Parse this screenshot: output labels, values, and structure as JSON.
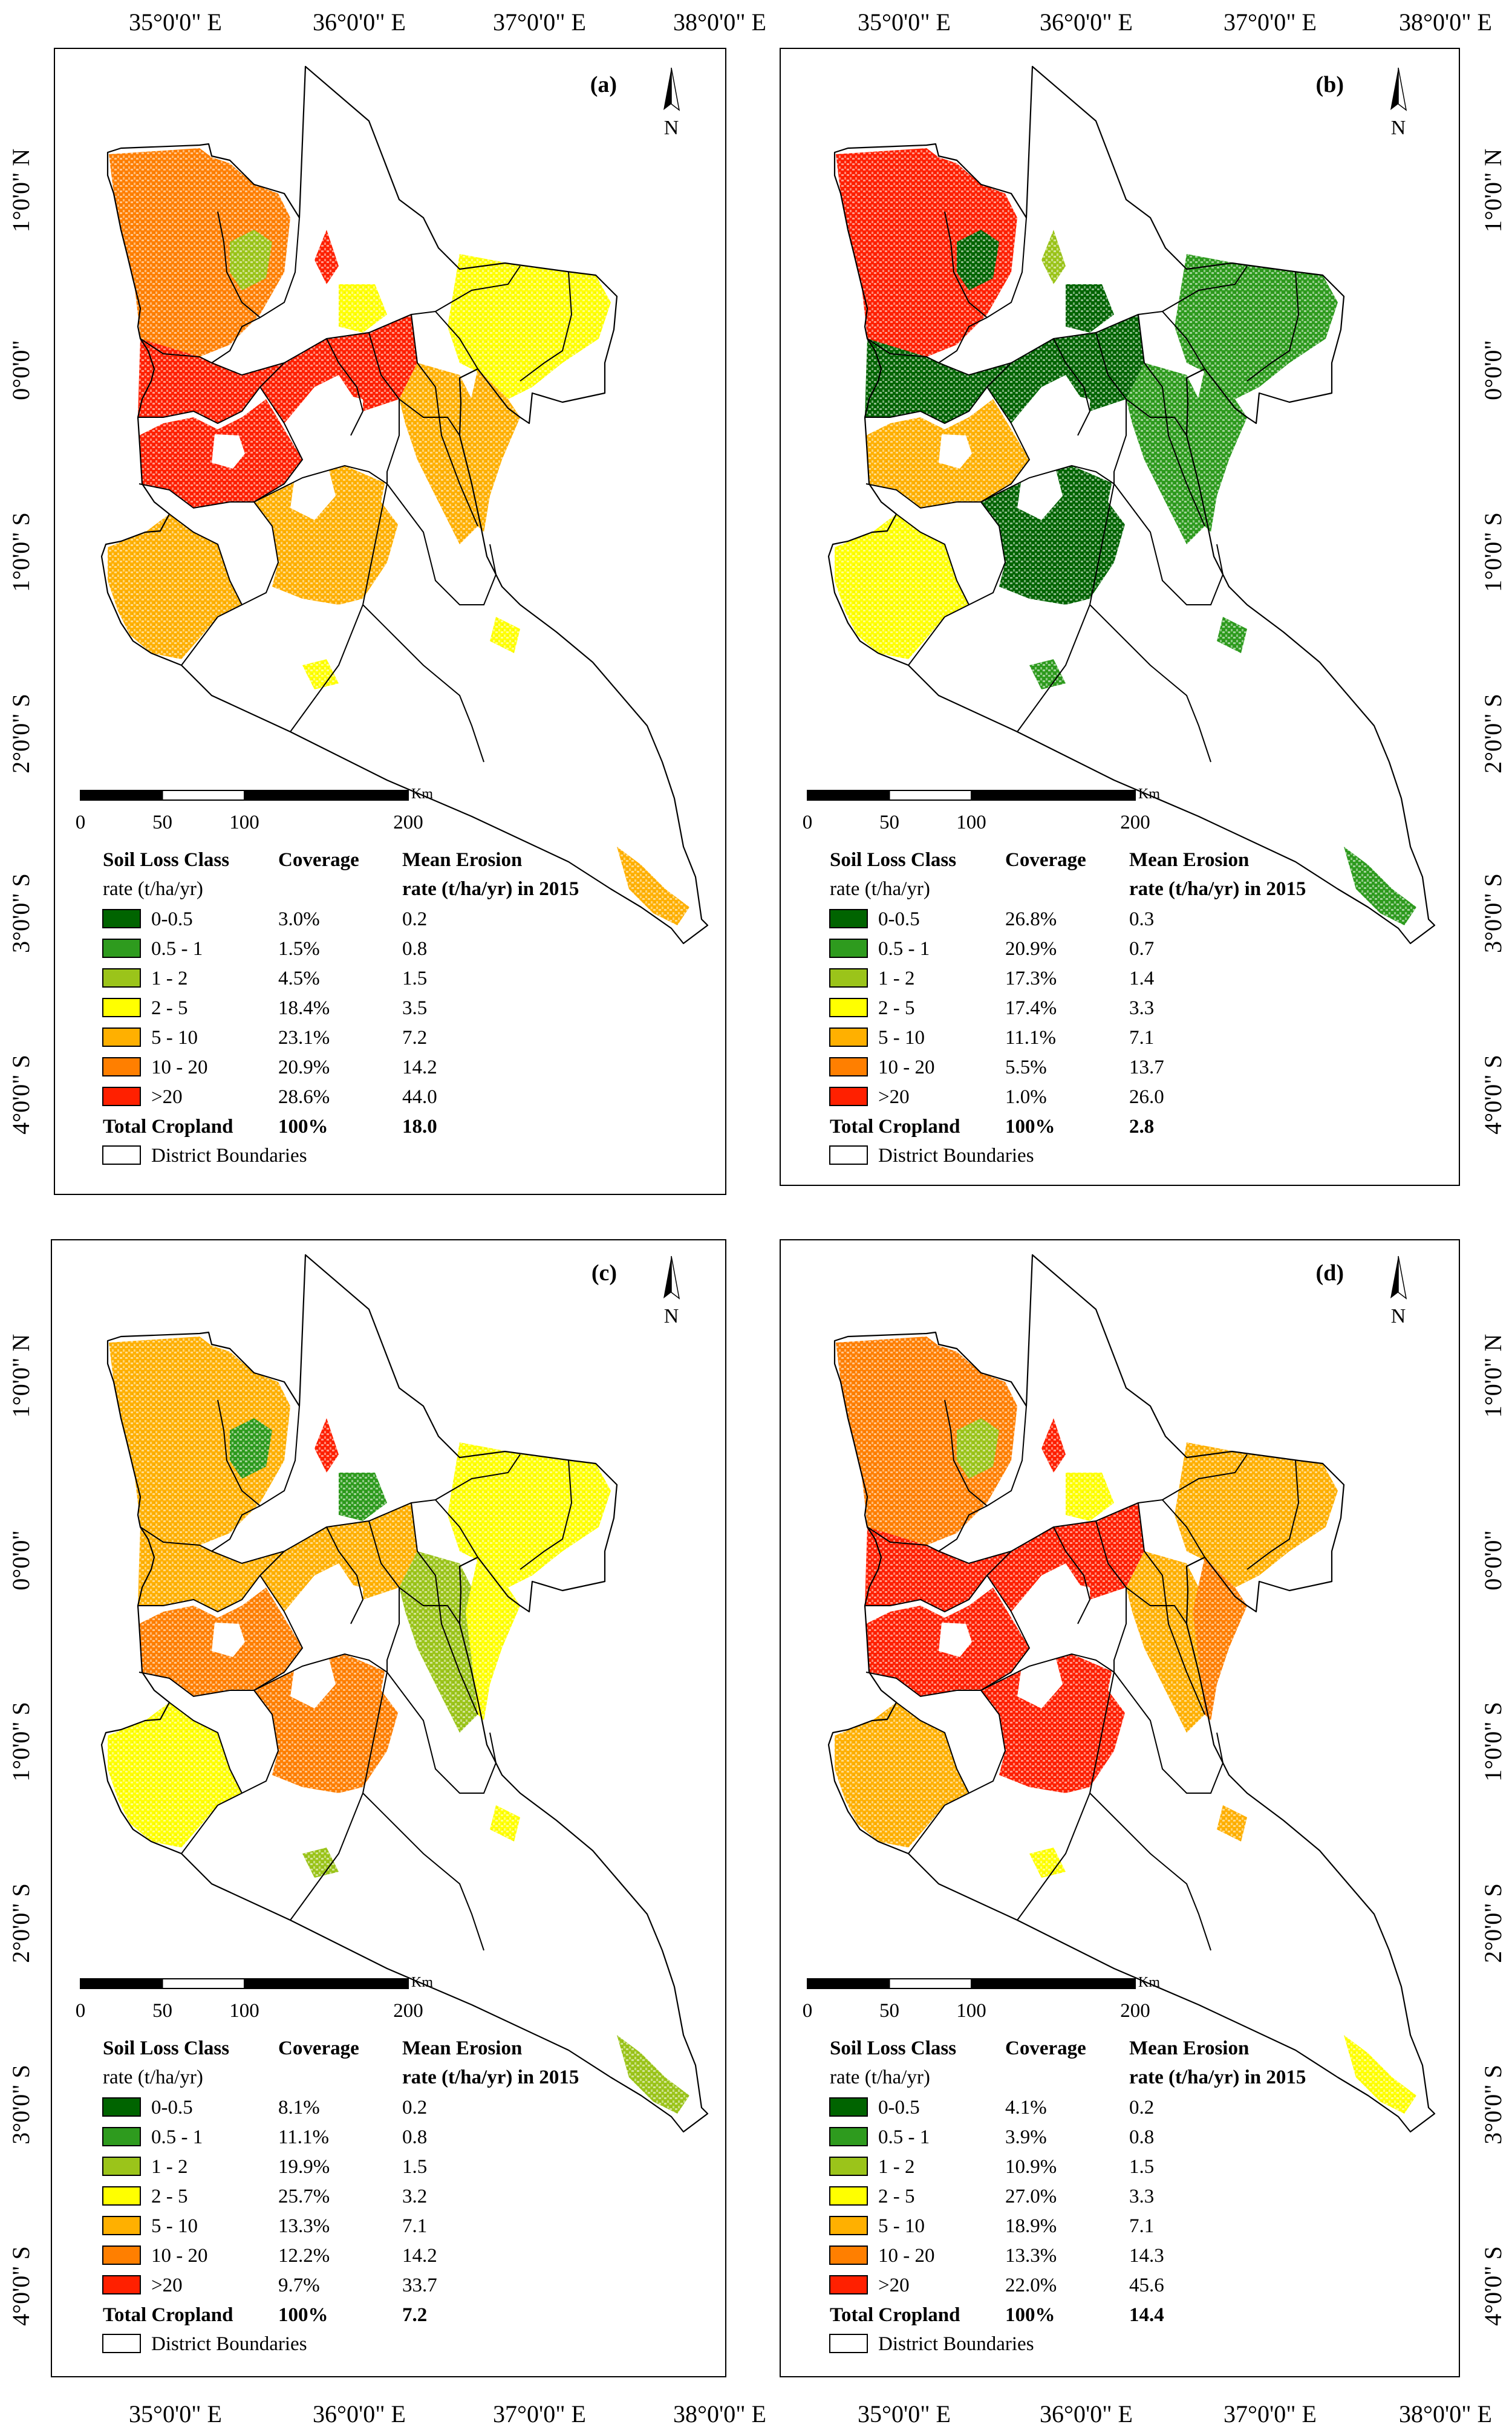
{
  "axes": {
    "top_labels": [
      "35°0'0\" E",
      "36°0'0\" E",
      "37°0'0\" E",
      "38°0'0\" E"
    ],
    "bottom_labels": [
      "35°0'0\" E",
      "36°0'0\" E",
      "37°0'0\" E",
      "38°0'0\" E"
    ],
    "left_labels": [
      "1°0'0\" N",
      "0°0'0\"",
      "1°0'0\" S",
      "2°0'0\" S",
      "3°0'0\" S",
      "4°0'0\" S"
    ],
    "right_labels": [
      "1°0'0\" N",
      "0°0'0\"",
      "1°0'0\" S",
      "2°0'0\" S",
      "3°0'0\" S",
      "4°0'0\" S"
    ]
  },
  "north_arrow": "N",
  "scale_bar": {
    "unit": "Km",
    "ticks": [
      "0",
      "50",
      "100",
      "200"
    ]
  },
  "legend_headers": {
    "class": "Soil Loss Class",
    "class_unit": "rate (t/ha/yr)",
    "coverage": "Coverage",
    "erosion": "Mean Erosion",
    "erosion_unit": "rate (t/ha/yr) in 2015",
    "boundaries": "District Boundaries"
  },
  "classes": [
    {
      "label": "0-0.5",
      "color": "#006400"
    },
    {
      "label": "0.5 - 1",
      "color": "#2E9B1E"
    },
    {
      "label": "1 - 2",
      "color": "#9BC41A"
    },
    {
      "label": "2 - 5",
      "color": "#FFFF00"
    },
    {
      "label": "5 - 10",
      "color": "#FFB000"
    },
    {
      "label": "10 - 20",
      "color": "#FF7F00"
    },
    {
      "label": ">20",
      "color": "#FF2000"
    }
  ],
  "panels": [
    {
      "label": "(a)",
      "coverage": [
        "3.0%",
        "1.5%",
        "4.5%",
        "18.4%",
        "23.1%",
        "20.9%",
        "28.6%"
      ],
      "erosion": [
        "0.2",
        "0.8",
        "1.5",
        "3.5",
        "7.2",
        "14.2",
        "44.0"
      ],
      "total": {
        "label": "Total Cropland",
        "coverage": "100%",
        "erosion": "18.0"
      }
    },
    {
      "label": "(b)",
      "coverage": [
        "26.8%",
        "20.9%",
        "17.3%",
        "17.4%",
        "11.1%",
        "5.5%",
        "1.0%"
      ],
      "erosion": [
        "0.3",
        "0.7",
        "1.4",
        "3.3",
        "7.1",
        "13.7",
        "26.0"
      ],
      "total": {
        "label": "Total Cropland",
        "coverage": "100%",
        "erosion": "2.8"
      }
    },
    {
      "label": "(c)",
      "coverage": [
        "8.1%",
        "11.1%",
        "19.9%",
        "25.7%",
        "13.3%",
        "12.2%",
        "9.7%"
      ],
      "erosion": [
        "0.2",
        "0.8",
        "1.5",
        "3.2",
        "7.1",
        "14.2",
        "33.7"
      ],
      "total": {
        "label": "Total Cropland",
        "coverage": "100%",
        "erosion": "7.2"
      }
    },
    {
      "label": "(d)",
      "coverage": [
        "4.1%",
        "3.9%",
        "10.9%",
        "27.0%",
        "18.9%",
        "13.3%",
        "22.0%"
      ],
      "erosion": [
        "0.2",
        "0.8",
        "1.5",
        "3.3",
        "7.1",
        "14.3",
        "45.6"
      ],
      "total": {
        "label": "Total Cropland",
        "coverage": "100%",
        "erosion": "14.4"
      }
    }
  ]
}
